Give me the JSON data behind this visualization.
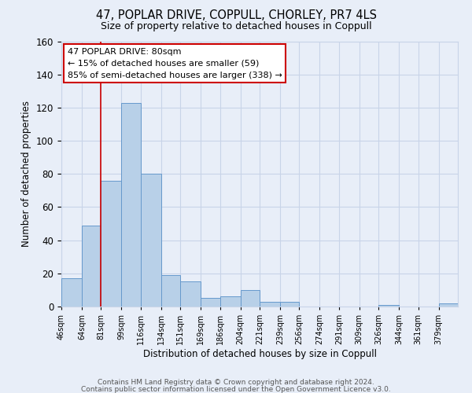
{
  "title": "47, POPLAR DRIVE, COPPULL, CHORLEY, PR7 4LS",
  "subtitle": "Size of property relative to detached houses in Coppull",
  "xlabel": "Distribution of detached houses by size in Coppull",
  "ylabel": "Number of detached properties",
  "footer_line1": "Contains HM Land Registry data © Crown copyright and database right 2024.",
  "footer_line2": "Contains public sector information licensed under the Open Government Licence v3.0.",
  "bar_edges": [
    46,
    64,
    81,
    99,
    116,
    134,
    151,
    169,
    186,
    204,
    221,
    239,
    256,
    274,
    291,
    309,
    326,
    344,
    361,
    379,
    396
  ],
  "bar_heights": [
    17,
    49,
    76,
    123,
    80,
    19,
    15,
    5,
    6,
    10,
    3,
    3,
    0,
    0,
    0,
    0,
    1,
    0,
    0,
    2
  ],
  "bar_color": "#b8d0e8",
  "bar_edge_color": "#6699cc",
  "vline_x": 81,
  "vline_color": "#cc0000",
  "ylim": [
    0,
    160
  ],
  "yticks": [
    0,
    20,
    40,
    60,
    80,
    100,
    120,
    140,
    160
  ],
  "annotation_title": "47 POPLAR DRIVE: 80sqm",
  "annotation_line1": "← 15% of detached houses are smaller (59)",
  "annotation_line2": "85% of semi-detached houses are larger (338) →",
  "annotation_box_color": "#ffffff",
  "annotation_box_edgecolor": "#cc0000",
  "grid_color": "#c8d4e8",
  "bg_color": "#e8eef8"
}
